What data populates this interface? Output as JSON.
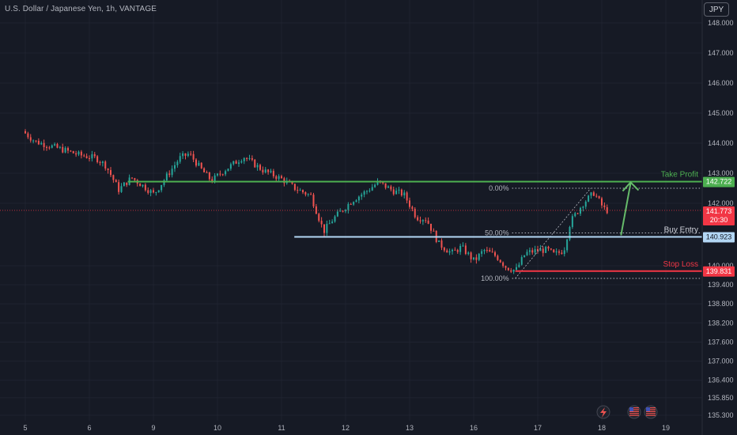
{
  "header": {
    "title": "U.S. Dollar / Japanese Yen, 1h, VANTAGE",
    "currency_button": "JPY"
  },
  "colors": {
    "background": "#161a25",
    "grid": "#1f2330",
    "up": "#26a69a",
    "down": "#ef5350",
    "take_profit": "#4caf50",
    "buy_entry": "#b3d7f5",
    "stop_loss": "#f23645",
    "fib": "#b2b5be",
    "arrow": "#66bb6a",
    "current_price": "#f23645"
  },
  "icons": [
    "lightning-icon",
    "us-flag-icon",
    "us-flag-icon"
  ],
  "chart_data": {
    "type": "candlestick",
    "x_ticks": [
      "5",
      "6",
      "9",
      "10",
      "11",
      "12",
      "13",
      "16",
      "17",
      "18",
      "19"
    ],
    "y_ticks": [
      "148.000",
      "147.000",
      "146.000",
      "145.000",
      "144.000",
      "143.000",
      "142.000",
      "140.000",
      "139.400",
      "138.800",
      "138.200",
      "137.600",
      "137.000",
      "136.400",
      "135.850",
      "135.300"
    ],
    "ylim": [
      135.3,
      148.3
    ],
    "levels": {
      "take_profit": {
        "label": "Take Profit",
        "price": "142.722",
        "value": 142.722
      },
      "buy_entry": {
        "label": "Buy Entry",
        "price": "140.923",
        "value": 140.923
      },
      "stop_loss": {
        "label": "Stop Loss",
        "price": "139.831",
        "value": 139.831
      }
    },
    "current_price": {
      "price": "141.773",
      "countdown": "20:30",
      "value": 141.773
    },
    "fib_levels": [
      {
        "label": "0.00%",
        "value": 142.5
      },
      {
        "label": "50.00%",
        "value": 141.05
      },
      {
        "label": "100.00%",
        "value": 139.6
      }
    ],
    "path_keypoints": [
      [
        5,
        144.4
      ],
      [
        5.2,
        144.05
      ],
      [
        5.6,
        143.8
      ],
      [
        5.9,
        143.6
      ],
      [
        6.15,
        143.5
      ],
      [
        6.3,
        143.25
      ],
      [
        6.5,
        142.45
      ],
      [
        6.7,
        142.85
      ],
      [
        6.9,
        142.55
      ],
      [
        7.05,
        142.3
      ],
      [
        7.2,
        142.75
      ],
      [
        7.45,
        143.5
      ],
      [
        7.6,
        143.65
      ],
      [
        7.8,
        143.1
      ],
      [
        7.95,
        142.75
      ],
      [
        8.15,
        143.1
      ],
      [
        8.45,
        143.55
      ],
      [
        8.75,
        143.1
      ],
      [
        9.05,
        142.8
      ],
      [
        9.25,
        142.5
      ],
      [
        9.5,
        142.25
      ],
      [
        9.7,
        141.1
      ],
      [
        9.85,
        141.5
      ],
      [
        10.15,
        142.1
      ],
      [
        10.4,
        142.45
      ],
      [
        10.55,
        142.7
      ],
      [
        10.8,
        142.4
      ],
      [
        10.95,
        142.3
      ],
      [
        11.15,
        141.55
      ],
      [
        11.3,
        141.5
      ],
      [
        11.5,
        140.7
      ],
      [
        11.7,
        140.4
      ],
      [
        11.85,
        140.6
      ],
      [
        12.05,
        140.15
      ],
      [
        12.2,
        140.5
      ],
      [
        12.4,
        140.3
      ],
      [
        12.55,
        139.95
      ],
      [
        12.7,
        139.85
      ],
      [
        12.85,
        140.4
      ],
      [
        13.05,
        140.5
      ],
      [
        13.2,
        140.5
      ],
      [
        13.3,
        140.35
      ],
      [
        13.45,
        140.5
      ],
      [
        13.55,
        141.4
      ],
      [
        13.75,
        142.0
      ],
      [
        13.92,
        142.35
      ],
      [
        14.05,
        141.9
      ],
      [
        14.1,
        141.773
      ]
    ]
  }
}
